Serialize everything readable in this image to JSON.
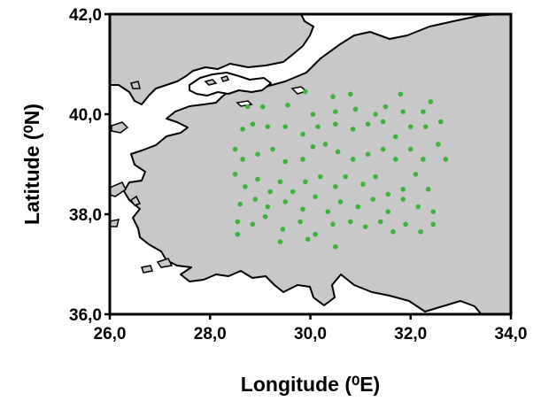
{
  "chart_data": {
    "type": "scatter",
    "title": "",
    "xlabel": "Longitude (⁰E)",
    "ylabel": "Latitude (⁰N)",
    "xlim": [
      26.0,
      34.0
    ],
    "ylim": [
      36.0,
      42.0
    ],
    "x_ticks": [
      "26,0",
      "28,0",
      "30,0",
      "32,0",
      "34,0"
    ],
    "y_ticks": [
      "36,0",
      "38,0",
      "40,0",
      "42,0"
    ],
    "grid": false,
    "legend": "none",
    "colors": {
      "land": "#c8c8c8",
      "sea": "#ffffff",
      "coast": "#000000",
      "points": "#3cb43c"
    },
    "series": [
      {
        "points": [
          [
            28.75,
            40.15
          ],
          [
            29.05,
            40.15
          ],
          [
            29.55,
            40.18
          ],
          [
            29.9,
            40.45
          ],
          [
            30.05,
            40.0
          ],
          [
            30.45,
            40.35
          ],
          [
            30.5,
            40.05
          ],
          [
            30.8,
            40.4
          ],
          [
            30.9,
            40.1
          ],
          [
            31.3,
            40.0
          ],
          [
            31.5,
            40.15
          ],
          [
            31.8,
            40.4
          ],
          [
            31.85,
            40.05
          ],
          [
            32.25,
            40.05
          ],
          [
            32.4,
            40.25
          ],
          [
            32.6,
            39.85
          ],
          [
            28.65,
            39.7
          ],
          [
            28.85,
            39.8
          ],
          [
            29.15,
            39.75
          ],
          [
            29.5,
            39.75
          ],
          [
            29.85,
            39.6
          ],
          [
            30.15,
            39.75
          ],
          [
            30.5,
            39.8
          ],
          [
            30.85,
            39.7
          ],
          [
            31.15,
            39.8
          ],
          [
            31.45,
            39.85
          ],
          [
            31.7,
            39.55
          ],
          [
            32.0,
            39.75
          ],
          [
            32.3,
            39.75
          ],
          [
            32.55,
            39.4
          ],
          [
            28.5,
            39.3
          ],
          [
            28.65,
            39.1
          ],
          [
            28.95,
            39.2
          ],
          [
            29.25,
            39.3
          ],
          [
            29.5,
            39.05
          ],
          [
            29.85,
            39.1
          ],
          [
            30.05,
            39.35
          ],
          [
            30.3,
            39.4
          ],
          [
            30.55,
            39.25
          ],
          [
            30.85,
            39.1
          ],
          [
            31.15,
            39.2
          ],
          [
            31.45,
            39.3
          ],
          [
            31.7,
            39.1
          ],
          [
            32.0,
            39.3
          ],
          [
            32.25,
            39.1
          ],
          [
            32.7,
            39.1
          ],
          [
            28.5,
            38.8
          ],
          [
            28.7,
            38.55
          ],
          [
            28.95,
            38.7
          ],
          [
            29.2,
            38.45
          ],
          [
            29.4,
            38.65
          ],
          [
            29.65,
            38.45
          ],
          [
            29.9,
            38.65
          ],
          [
            30.2,
            38.75
          ],
          [
            30.5,
            38.55
          ],
          [
            30.7,
            38.75
          ],
          [
            31.05,
            38.6
          ],
          [
            31.3,
            38.75
          ],
          [
            31.55,
            38.4
          ],
          [
            31.85,
            38.5
          ],
          [
            32.1,
            38.8
          ],
          [
            32.35,
            38.5
          ],
          [
            28.6,
            38.2
          ],
          [
            28.9,
            38.3
          ],
          [
            29.15,
            38.15
          ],
          [
            29.5,
            38.25
          ],
          [
            29.85,
            38.1
          ],
          [
            30.1,
            38.35
          ],
          [
            30.35,
            38.05
          ],
          [
            30.6,
            38.25
          ],
          [
            30.95,
            38.15
          ],
          [
            31.25,
            38.3
          ],
          [
            31.55,
            38.05
          ],
          [
            31.85,
            38.3
          ],
          [
            32.15,
            38.15
          ],
          [
            32.45,
            38.05
          ],
          [
            28.55,
            37.85
          ],
          [
            28.85,
            37.8
          ],
          [
            29.1,
            37.95
          ],
          [
            29.45,
            37.7
          ],
          [
            29.8,
            37.85
          ],
          [
            30.1,
            37.6
          ],
          [
            30.45,
            37.8
          ],
          [
            30.8,
            37.85
          ],
          [
            31.1,
            37.75
          ],
          [
            31.4,
            37.85
          ],
          [
            31.65,
            37.65
          ],
          [
            31.9,
            37.8
          ],
          [
            32.2,
            37.65
          ],
          [
            32.45,
            37.8
          ],
          [
            28.55,
            37.6
          ],
          [
            29.4,
            37.45
          ],
          [
            29.95,
            37.5
          ],
          [
            30.5,
            37.35
          ]
        ]
      }
    ]
  }
}
